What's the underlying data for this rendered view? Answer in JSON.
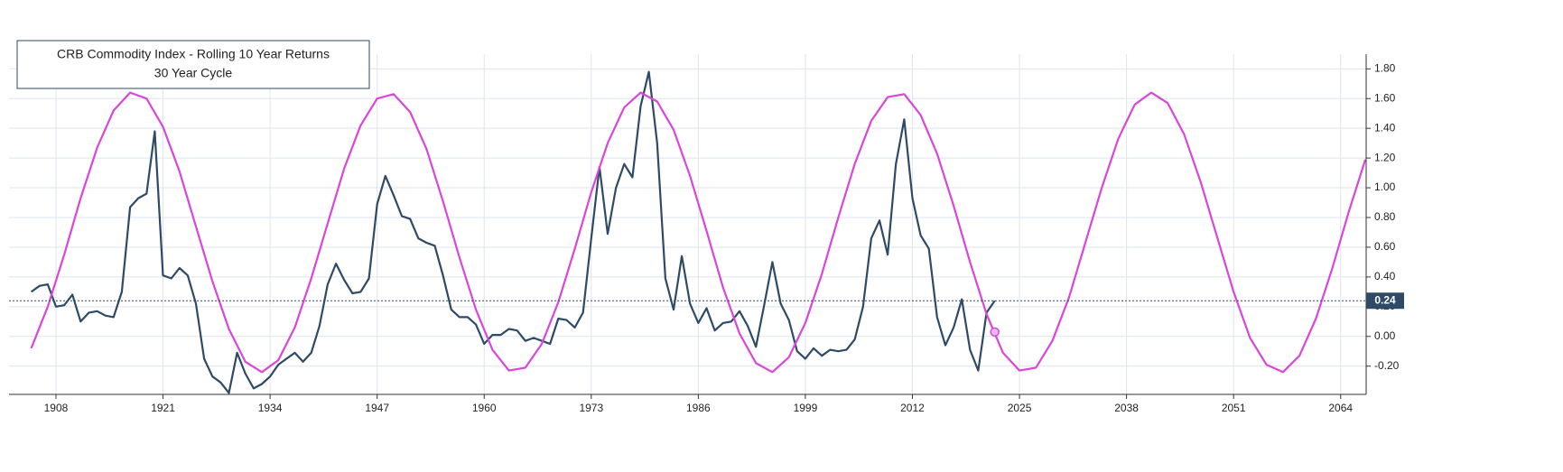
{
  "chart_data": {
    "type": "line",
    "title": "CRB Commodity Index - Rolling 10 Year Returns",
    "subtitle": "30 Year Cycle",
    "series": [
      {
        "color": "#2e4a66",
        "x": [
          1905,
          1906,
          1907,
          1908,
          1909,
          1910,
          1911,
          1912,
          1913,
          1914,
          1915,
          1916,
          1917,
          1918,
          1919,
          1920,
          1921,
          1922,
          1923,
          1924,
          1925,
          1926,
          1927,
          1928,
          1929,
          1930,
          1931,
          1932,
          1933,
          1934,
          1935,
          1936,
          1937,
          1938,
          1939,
          1940,
          1941,
          1942,
          1943,
          1944,
          1945,
          1946,
          1947,
          1948,
          1949,
          1950,
          1951,
          1952,
          1953,
          1954,
          1955,
          1956,
          1957,
          1958,
          1959,
          1960,
          1961,
          1962,
          1963,
          1964,
          1965,
          1966,
          1967,
          1968,
          1969,
          1970,
          1971,
          1972,
          1973,
          1974,
          1975,
          1976,
          1977,
          1978,
          1979,
          1980,
          1981,
          1982,
          1983,
          1984,
          1985,
          1986,
          1987,
          1988,
          1989,
          1990,
          1991,
          1992,
          1993,
          1994,
          1995,
          1996,
          1997,
          1998,
          1999,
          2000,
          2001,
          2002,
          2003,
          2004,
          2005,
          2006,
          2007,
          2008,
          2009,
          2010,
          2011,
          2012,
          2013,
          2014,
          2015,
          2016,
          2017,
          2018,
          2019,
          2020,
          2021,
          2022
        ],
        "values": [
          0.3,
          0.34,
          0.35,
          0.2,
          0.21,
          0.28,
          0.1,
          0.16,
          0.17,
          0.14,
          0.13,
          0.3,
          0.87,
          0.93,
          0.96,
          1.38,
          0.41,
          0.39,
          0.46,
          0.41,
          0.22,
          -0.15,
          -0.27,
          -0.31,
          -0.38,
          -0.11,
          -0.25,
          -0.35,
          -0.32,
          -0.27,
          -0.19,
          -0.15,
          -0.11,
          -0.17,
          -0.11,
          0.07,
          0.35,
          0.49,
          0.38,
          0.29,
          0.3,
          0.39,
          0.89,
          1.08,
          0.95,
          0.81,
          0.79,
          0.66,
          0.63,
          0.61,
          0.41,
          0.18,
          0.13,
          0.13,
          0.08,
          -0.05,
          0.01,
          0.01,
          0.05,
          0.04,
          -0.03,
          -0.01,
          -0.03,
          -0.05,
          0.12,
          0.11,
          0.06,
          0.16,
          0.66,
          1.14,
          0.69,
          1.0,
          1.16,
          1.07,
          1.55,
          1.78,
          1.3,
          0.39,
          0.18,
          0.54,
          0.22,
          0.09,
          0.19,
          0.04,
          0.09,
          0.1,
          0.17,
          0.07,
          -0.07,
          0.21,
          0.5,
          0.22,
          0.11,
          -0.1,
          -0.15,
          -0.08,
          -0.13,
          -0.09,
          -0.1,
          -0.09,
          -0.02,
          0.2,
          0.66,
          0.78,
          0.55,
          1.16,
          1.46,
          0.93,
          0.68,
          0.59,
          0.13,
          -0.06,
          0.06,
          0.25,
          -0.09,
          -0.23,
          0.16,
          0.24
        ]
      },
      {
        "color": "#d946d8",
        "x": [
          1905,
          1907,
          1909,
          1911,
          1913,
          1915,
          1917,
          1919,
          1921,
          1923,
          1925,
          1927,
          1929,
          1931,
          1933,
          1935,
          1937,
          1939,
          1941,
          1943,
          1945,
          1947,
          1949,
          1951,
          1953,
          1955,
          1957,
          1959,
          1961,
          1963,
          1965,
          1967,
          1969,
          1971,
          1973,
          1975,
          1977,
          1979,
          1981,
          1983,
          1985,
          1987,
          1989,
          1991,
          1993,
          1995,
          1997,
          1999,
          2001,
          2003,
          2005,
          2007,
          2009,
          2011,
          2013,
          2015,
          2017,
          2019,
          2021,
          2023,
          2025,
          2027,
          2029,
          2031,
          2033,
          2035,
          2037,
          2039,
          2041,
          2043,
          2045,
          2047,
          2049,
          2051,
          2053,
          2055,
          2057,
          2059,
          2061,
          2063,
          2065,
          2067
        ],
        "values": [
          -0.08,
          0.2,
          0.55,
          0.93,
          1.27,
          1.52,
          1.64,
          1.6,
          1.41,
          1.11,
          0.74,
          0.37,
          0.05,
          -0.17,
          -0.24,
          -0.16,
          0.06,
          0.39,
          0.76,
          1.13,
          1.42,
          1.6,
          1.63,
          1.51,
          1.26,
          0.91,
          0.53,
          0.18,
          -0.09,
          -0.23,
          -0.21,
          -0.05,
          0.23,
          0.59,
          0.97,
          1.3,
          1.54,
          1.64,
          1.58,
          1.39,
          1.08,
          0.71,
          0.33,
          0.02,
          -0.18,
          -0.24,
          -0.14,
          0.09,
          0.42,
          0.8,
          1.16,
          1.45,
          1.61,
          1.63,
          1.49,
          1.23,
          0.88,
          0.5,
          0.15,
          -0.11,
          -0.23,
          -0.21,
          -0.03,
          0.26,
          0.63,
          1.0,
          1.33,
          1.56,
          1.64,
          1.57,
          1.36,
          1.04,
          0.67,
          0.3,
          -0.01,
          -0.19,
          -0.24,
          -0.13,
          0.12,
          0.46,
          0.84,
          1.19
        ]
      }
    ],
    "marker": {
      "x": 2022,
      "y": 0.03,
      "color": "#d946d8"
    },
    "reference_line": {
      "value": 0.24
    },
    "xlim": [
      1902.3,
      2067.1
    ],
    "ylim": [
      -0.39,
      1.99
    ],
    "xticks": [
      1908,
      1921,
      1934,
      1947,
      1960,
      1973,
      1986,
      1999,
      2012,
      2025,
      2038,
      2051,
      2064
    ],
    "yticks": [
      {
        "value": -0.2,
        "label": "-0.20"
      },
      {
        "value": 0,
        "label": "0.00"
      },
      {
        "value": 0.2,
        "label": "0.20"
      },
      {
        "value": 0.4,
        "label": "0.40"
      },
      {
        "value": 0.6,
        "label": "0.60"
      },
      {
        "value": 0.8,
        "label": "0.80"
      },
      {
        "value": 1.0,
        "label": "1.00"
      },
      {
        "value": 1.2,
        "label": "1.20"
      },
      {
        "value": 1.4,
        "label": "1.40"
      },
      {
        "value": 1.6,
        "label": "1.60"
      },
      {
        "value": 1.8,
        "label": "1.80"
      }
    ],
    "grid": true
  }
}
